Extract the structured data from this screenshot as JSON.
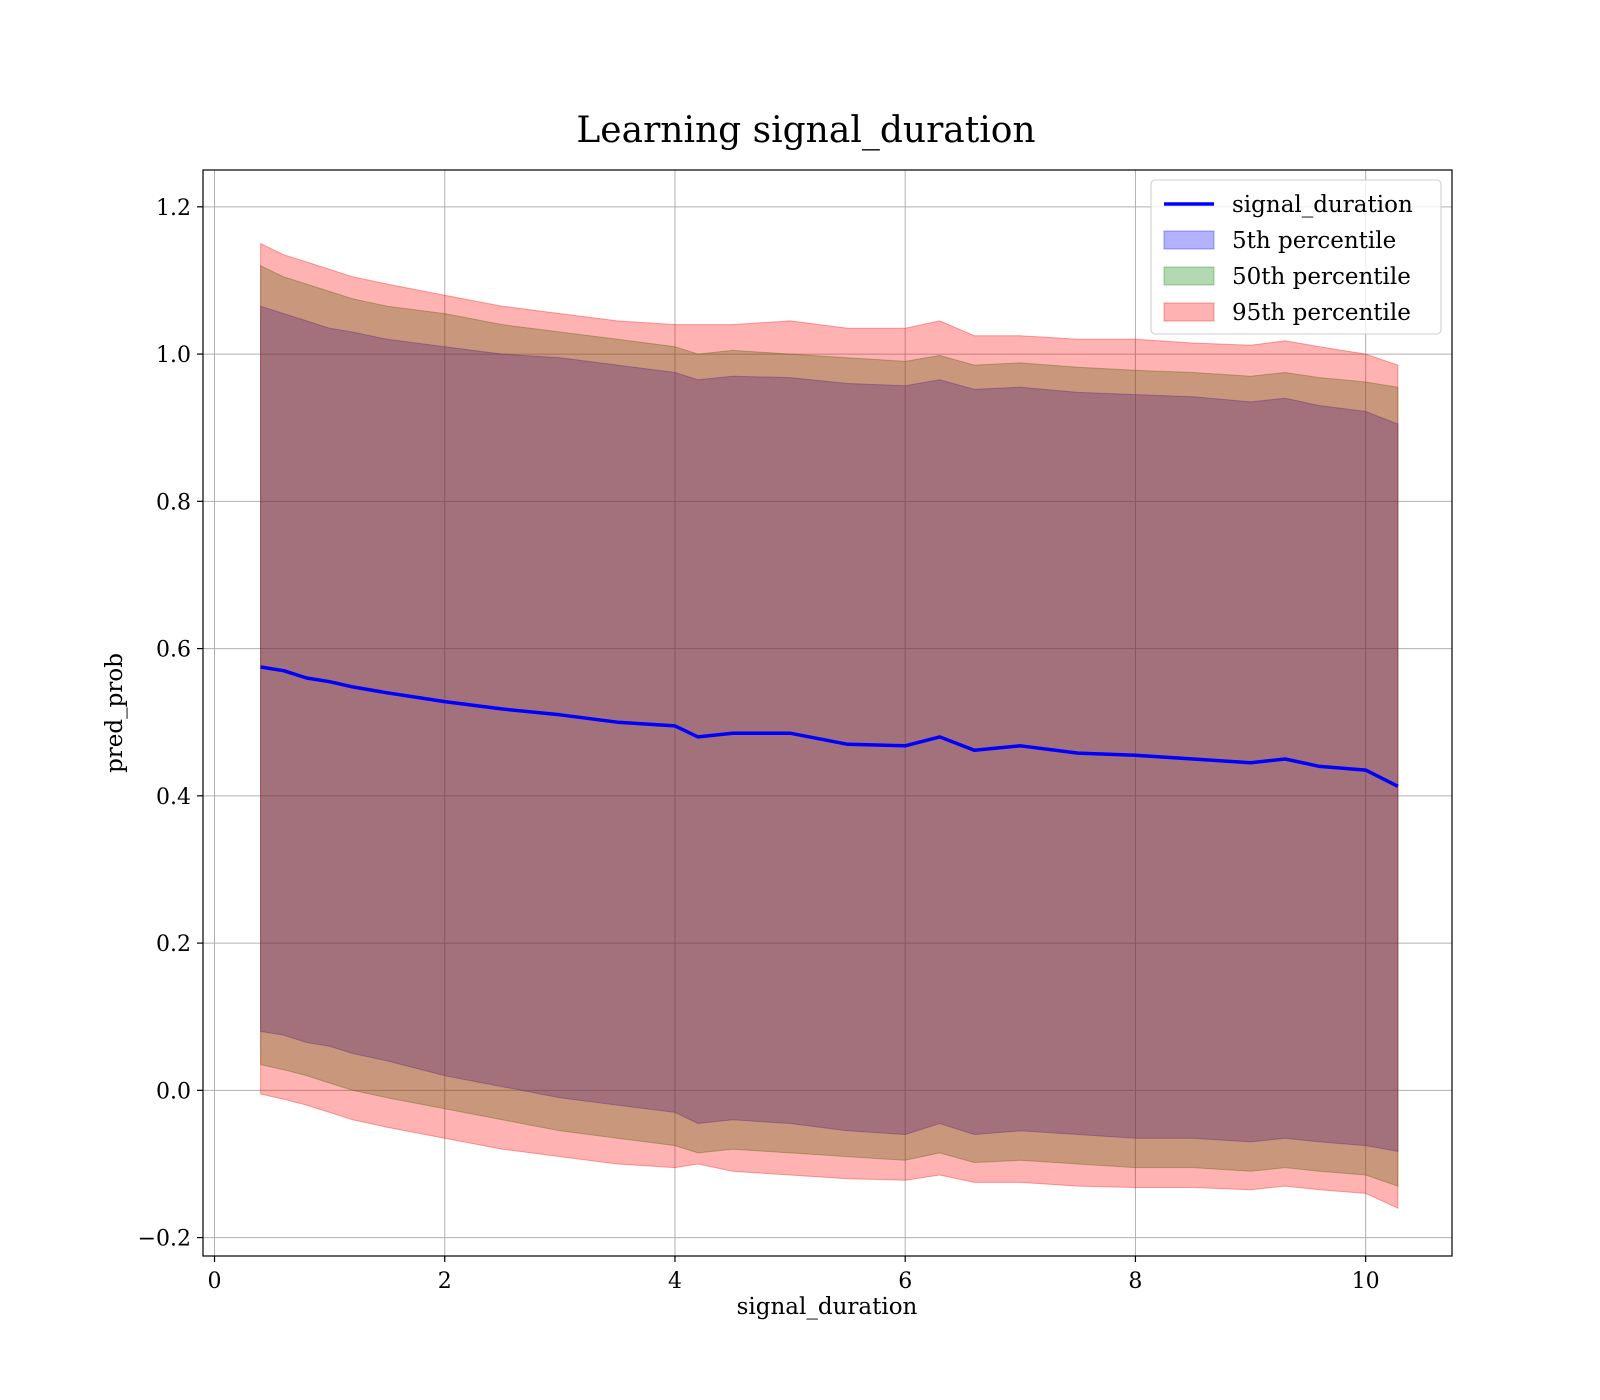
{
  "chart_data": {
    "type": "line",
    "title": "Learning signal_duration",
    "xlabel": "signal_duration",
    "ylabel": "pred_prob",
    "xlim": [
      -0.1,
      10.75
    ],
    "ylim": [
      -0.225,
      1.25
    ],
    "xticks": [
      0,
      2,
      4,
      6,
      8,
      10
    ],
    "yticks": [
      -0.2,
      0.0,
      0.2,
      0.4,
      0.6,
      0.8,
      1.0,
      1.2
    ],
    "xtick_labels": [
      "0",
      "2",
      "4",
      "6",
      "8",
      "10"
    ],
    "ytick_labels": [
      "−0.2",
      "0.0",
      "0.2",
      "0.4",
      "0.6",
      "0.8",
      "1.0",
      "1.2"
    ],
    "grid": true,
    "legend_position": "top-right",
    "x": [
      0.4,
      0.6,
      0.8,
      1.0,
      1.2,
      1.5,
      2.0,
      2.5,
      3.0,
      3.5,
      4.0,
      4.2,
      4.5,
      5.0,
      5.5,
      6.0,
      6.3,
      6.6,
      7.0,
      7.5,
      8.0,
      8.5,
      9.0,
      9.3,
      9.6,
      10.0,
      10.28
    ],
    "series": [
      {
        "name": "signal_duration",
        "kind": "line",
        "color": "#0000ff",
        "values": [
          0.575,
          0.57,
          0.56,
          0.555,
          0.548,
          0.54,
          0.528,
          0.518,
          0.51,
          0.5,
          0.495,
          0.48,
          0.485,
          0.485,
          0.47,
          0.468,
          0.48,
          0.462,
          0.468,
          0.458,
          0.455,
          0.45,
          0.445,
          0.45,
          0.44,
          0.435,
          0.413
        ]
      },
      {
        "name": "5th percentile",
        "kind": "band",
        "color": "#0000ff",
        "lower": [
          0.08,
          0.075,
          0.065,
          0.06,
          0.05,
          0.04,
          0.02,
          0.005,
          -0.01,
          -0.02,
          -0.03,
          -0.045,
          -0.04,
          -0.045,
          -0.055,
          -0.06,
          -0.045,
          -0.06,
          -0.055,
          -0.06,
          -0.065,
          -0.065,
          -0.07,
          -0.065,
          -0.07,
          -0.075,
          -0.083
        ],
        "upper": [
          1.065,
          1.055,
          1.045,
          1.035,
          1.03,
          1.02,
          1.01,
          1.0,
          0.995,
          0.985,
          0.975,
          0.965,
          0.97,
          0.968,
          0.96,
          0.957,
          0.965,
          0.952,
          0.955,
          0.948,
          0.945,
          0.942,
          0.935,
          0.94,
          0.93,
          0.922,
          0.905
        ]
      },
      {
        "name": "50th percentile",
        "kind": "band",
        "color": "#008000",
        "lower": [
          0.035,
          0.028,
          0.02,
          0.01,
          0.0,
          -0.01,
          -0.025,
          -0.04,
          -0.055,
          -0.065,
          -0.075,
          -0.085,
          -0.08,
          -0.085,
          -0.09,
          -0.095,
          -0.085,
          -0.098,
          -0.095,
          -0.1,
          -0.105,
          -0.105,
          -0.11,
          -0.105,
          -0.11,
          -0.115,
          -0.13
        ],
        "upper": [
          1.12,
          1.105,
          1.095,
          1.085,
          1.075,
          1.065,
          1.055,
          1.04,
          1.03,
          1.02,
          1.01,
          1.0,
          1.005,
          1.0,
          0.995,
          0.99,
          0.998,
          0.985,
          0.988,
          0.982,
          0.978,
          0.975,
          0.97,
          0.975,
          0.968,
          0.962,
          0.955
        ]
      },
      {
        "name": "95th percentile",
        "kind": "band",
        "color": "#ff0000",
        "lower": [
          -0.005,
          -0.012,
          -0.02,
          -0.03,
          -0.04,
          -0.05,
          -0.065,
          -0.08,
          -0.09,
          -0.1,
          -0.105,
          -0.1,
          -0.11,
          -0.115,
          -0.12,
          -0.122,
          -0.115,
          -0.125,
          -0.125,
          -0.13,
          -0.132,
          -0.132,
          -0.135,
          -0.13,
          -0.135,
          -0.14,
          -0.16
        ],
        "upper": [
          1.15,
          1.135,
          1.125,
          1.115,
          1.105,
          1.095,
          1.08,
          1.065,
          1.055,
          1.045,
          1.04,
          1.04,
          1.04,
          1.045,
          1.035,
          1.035,
          1.045,
          1.025,
          1.025,
          1.02,
          1.02,
          1.015,
          1.012,
          1.018,
          1.01,
          1.0,
          0.985
        ]
      }
    ]
  }
}
